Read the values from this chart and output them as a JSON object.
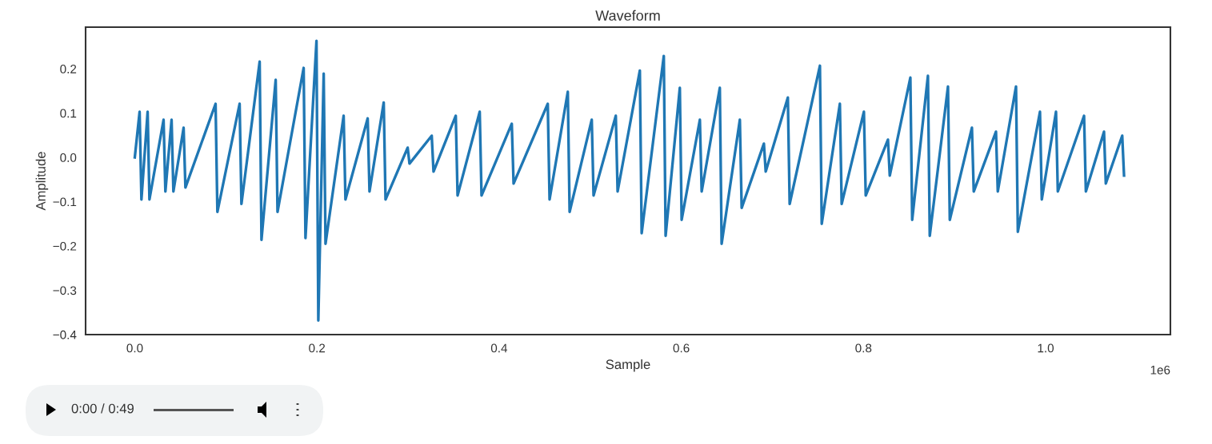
{
  "chart_data": {
    "type": "line",
    "title": "Waveform",
    "xlabel": "Sample",
    "ylabel": "Amplitude",
    "annotations": [
      "1e6",
      "0:00 / 0:49"
    ],
    "grid": false,
    "legend": false,
    "marker": "none",
    "line_style": "solid",
    "xlim": [
      -0.054,
      1.137
    ],
    "xticks": [
      {
        "value": 0,
        "label": "0.0"
      },
      0.2,
      0.4,
      0.6,
      0.8,
      {
        "value": 1,
        "label": "1.0"
      }
    ],
    "ylim": [
      -0.4,
      0.294
    ],
    "yticks": [
      {
        "value": -0.4,
        "label": "−0.4"
      },
      {
        "value": -0.3,
        "label": "−0.3"
      },
      {
        "value": -0.2,
        "label": "−0.2"
      },
      {
        "value": -0.1,
        "label": "−0.1"
      },
      {
        "value": 0,
        "label": "0.0"
      },
      0.1,
      0.2
    ],
    "series": [
      {
        "color": "#1f77b4",
        "x": [
          0,
          0.0053,
          0.0073,
          0.0141,
          0.0161,
          0.0316,
          0.0336,
          0.0404,
          0.0424,
          0.0536,
          0.0556,
          0.0887,
          0.0907,
          0.1151,
          0.1171,
          0.1371,
          0.1391,
          0.1547,
          0.1567,
          0.1854,
          0.1874,
          0.1995,
          0.2015,
          0.2074,
          0.2094,
          0.2293,
          0.2313,
          0.2557,
          0.2577,
          0.2733,
          0.2753,
          0.2996,
          0.3016,
          0.326,
          0.328,
          0.3524,
          0.3544,
          0.3787,
          0.3807,
          0.4139,
          0.4159,
          0.4534,
          0.4554,
          0.4754,
          0.4774,
          0.5017,
          0.5037,
          0.5281,
          0.5301,
          0.5545,
          0.5565,
          0.5808,
          0.5828,
          0.5984,
          0.6004,
          0.6204,
          0.6224,
          0.6423,
          0.6443,
          0.6643,
          0.6663,
          0.6907,
          0.6927,
          0.717,
          0.719,
          0.7522,
          0.7542,
          0.7741,
          0.7761,
          0.8005,
          0.8025,
          0.8269,
          0.8289,
          0.8515,
          0.8535,
          0.8708,
          0.8728,
          0.8928,
          0.8948,
          0.9191,
          0.9211,
          0.9455,
          0.9475,
          0.9675,
          0.9695,
          0.9938,
          0.9958,
          1.0114,
          1.0134,
          1.0422,
          1.0442,
          1.0641,
          1.0661,
          1.0841,
          1.0861
        ],
        "values": [
          0.0,
          0.103,
          -0.095,
          0.103,
          -0.095,
          0.085,
          -0.077,
          0.085,
          -0.077,
          0.067,
          -0.068,
          0.121,
          -0.123,
          0.121,
          -0.105,
          0.216,
          -0.186,
          0.175,
          -0.123,
          0.202,
          -0.182,
          0.263,
          -0.368,
          0.189,
          -0.195,
          0.094,
          -0.095,
          0.088,
          -0.077,
          0.124,
          -0.095,
          0.022,
          -0.014,
          0.049,
          -0.032,
          0.094,
          -0.086,
          0.103,
          -0.086,
          0.076,
          -0.059,
          0.121,
          -0.095,
          0.148,
          -0.123,
          0.085,
          -0.086,
          0.094,
          -0.077,
          0.196,
          -0.171,
          0.229,
          -0.177,
          0.157,
          -0.141,
          0.085,
          -0.077,
          0.157,
          -0.195,
          0.085,
          -0.114,
          0.031,
          -0.032,
          0.135,
          -0.105,
          0.207,
          -0.15,
          0.121,
          -0.105,
          0.103,
          -0.086,
          0.04,
          -0.041,
          0.18,
          -0.141,
          0.184,
          -0.177,
          0.16,
          -0.141,
          0.067,
          -0.077,
          0.058,
          -0.077,
          0.16,
          -0.168,
          0.103,
          -0.095,
          0.103,
          -0.077,
          0.094,
          -0.077,
          0.058,
          -0.059,
          0.049,
          -0.041
        ]
      }
    ]
  }
}
